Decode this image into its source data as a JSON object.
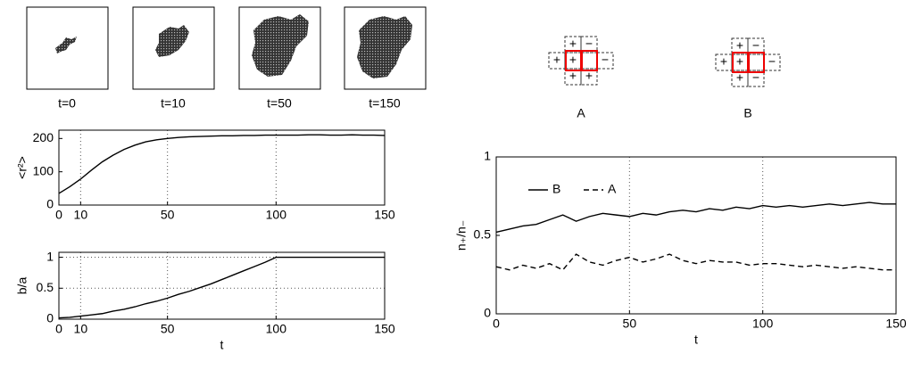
{
  "snapshots": {
    "labels": [
      "t=0",
      "t=10",
      "t=50",
      "t=150"
    ]
  },
  "diagrams": [
    {
      "label": "A",
      "signs": [
        "+",
        "−",
        "+",
        "+",
        "−",
        "+",
        "+"
      ]
    },
    {
      "label": "B",
      "signs": [
        "+",
        "−",
        "+",
        "+",
        "−",
        "+",
        "−"
      ]
    }
  ],
  "chart_data": [
    {
      "type": "line",
      "y_label": "<r²>",
      "x": [
        0,
        5,
        10,
        15,
        20,
        25,
        30,
        35,
        40,
        45,
        50,
        55,
        60,
        65,
        70,
        75,
        80,
        85,
        90,
        95,
        100,
        105,
        110,
        115,
        120,
        125,
        130,
        135,
        140,
        145,
        150
      ],
      "series": [
        {
          "color": "#000000",
          "style": "solid",
          "values": [
            35,
            55,
            78,
            105,
            130,
            150,
            167,
            180,
            190,
            196,
            200,
            203,
            205,
            206,
            207,
            208,
            208,
            209,
            209,
            210,
            210,
            210,
            210,
            211,
            211,
            210,
            210,
            211,
            210,
            210,
            209
          ]
        }
      ],
      "xlim": [
        0,
        150
      ],
      "xticks": [
        0,
        10,
        50,
        100,
        150
      ],
      "ylim": [
        0,
        225
      ],
      "yticks": [
        0,
        100,
        200
      ],
      "grid": "x"
    },
    {
      "type": "line",
      "y_label": "b/a",
      "x_label": "t",
      "x": [
        0,
        5,
        10,
        15,
        20,
        25,
        30,
        35,
        40,
        45,
        50,
        55,
        60,
        65,
        70,
        75,
        80,
        85,
        90,
        95,
        100,
        105,
        110,
        115,
        120,
        125,
        130,
        135,
        140,
        145,
        150
      ],
      "series": [
        {
          "color": "#000000",
          "style": "solid",
          "values": [
            0.02,
            0.03,
            0.05,
            0.07,
            0.09,
            0.13,
            0.16,
            0.2,
            0.25,
            0.29,
            0.34,
            0.4,
            0.45,
            0.51,
            0.57,
            0.64,
            0.71,
            0.78,
            0.85,
            0.92,
            1,
            1,
            1,
            1,
            1,
            1,
            1,
            1,
            1,
            1,
            1
          ]
        }
      ],
      "xlim": [
        0,
        150
      ],
      "xticks": [
        0,
        10,
        50,
        100,
        150
      ],
      "ylim": [
        0,
        1.08
      ],
      "yticks": [
        0,
        0.5,
        1
      ],
      "grid": "both"
    },
    {
      "type": "line",
      "y_label": "n₊/n₋",
      "x_label": "t",
      "legend": "upper left",
      "x": [
        0,
        5,
        10,
        15,
        20,
        25,
        30,
        35,
        40,
        45,
        50,
        55,
        60,
        65,
        70,
        75,
        80,
        85,
        90,
        95,
        100,
        105,
        110,
        115,
        120,
        125,
        130,
        135,
        140,
        145,
        150
      ],
      "series": [
        {
          "name": "B",
          "color": "#000000",
          "style": "solid",
          "values": [
            0.52,
            0.54,
            0.56,
            0.57,
            0.6,
            0.63,
            0.59,
            0.62,
            0.64,
            0.63,
            0.62,
            0.64,
            0.63,
            0.65,
            0.66,
            0.65,
            0.67,
            0.66,
            0.68,
            0.67,
            0.69,
            0.68,
            0.69,
            0.68,
            0.69,
            0.7,
            0.69,
            0.7,
            0.71,
            0.7,
            0.7
          ]
        },
        {
          "name": "A",
          "color": "#000000",
          "style": "dashed",
          "values": [
            0.3,
            0.28,
            0.31,
            0.29,
            0.32,
            0.28,
            0.38,
            0.33,
            0.31,
            0.34,
            0.36,
            0.33,
            0.35,
            0.38,
            0.34,
            0.32,
            0.34,
            0.33,
            0.33,
            0.31,
            0.32,
            0.32,
            0.31,
            0.3,
            0.31,
            0.3,
            0.29,
            0.3,
            0.29,
            0.28,
            0.28
          ]
        }
      ],
      "xlim": [
        0,
        150
      ],
      "xticks": [
        0,
        50,
        100,
        150
      ],
      "ylim": [
        0,
        1
      ],
      "yticks": [
        0,
        0.5,
        1
      ],
      "grid": "x"
    }
  ]
}
